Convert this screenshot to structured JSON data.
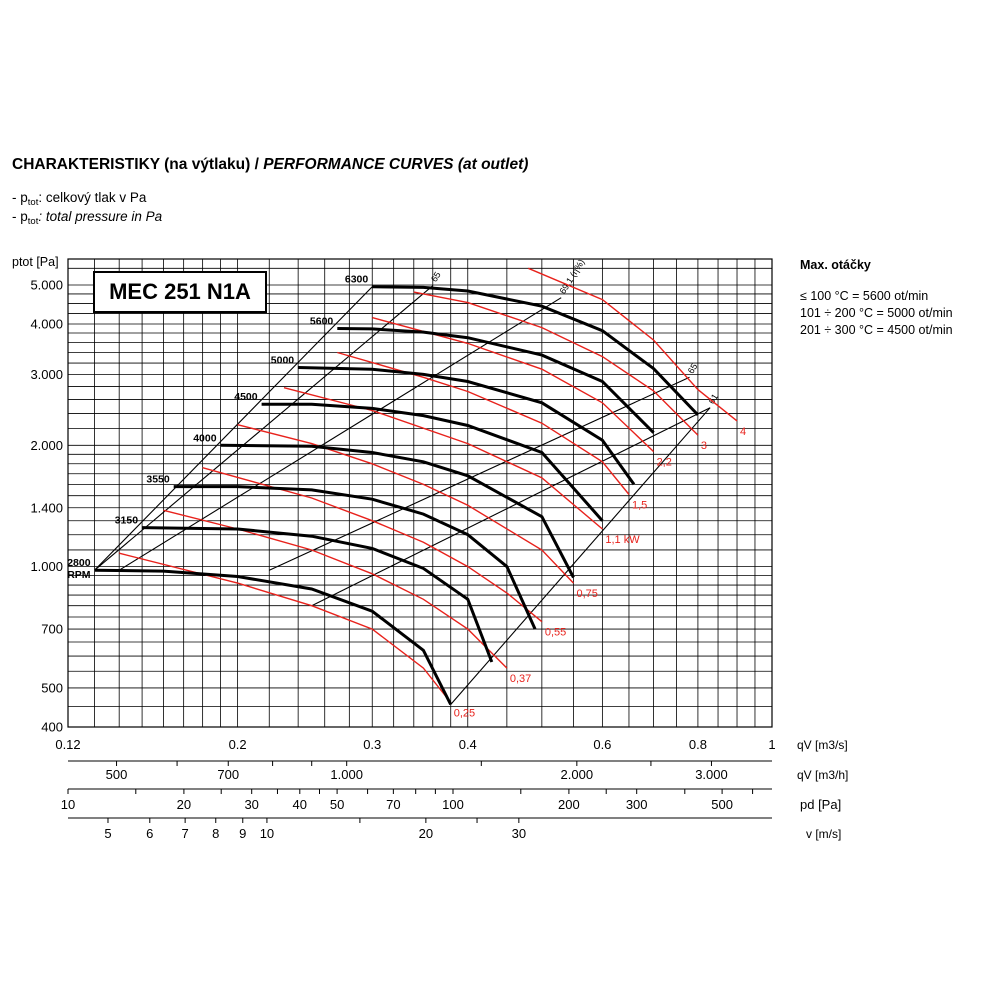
{
  "title": {
    "cz": "CHARAKTERISTIKY (na výtlaku) / ",
    "en": "PERFORMANCE CURVES (at outlet)"
  },
  "legend": [
    {
      "prefix": "- p",
      "sub": "tot",
      "text_cz": ": celkový tlak v Pa"
    },
    {
      "prefix": "- p",
      "sub": "tot",
      "text_en": ": total pressure in Pa"
    }
  ],
  "model": "MEC 251 N1A",
  "max_speed": {
    "heading": "Max. otáčky",
    "lines": [
      "≤ 100 °C = 5600 ot/min",
      "101 ÷ 200 °C = 5000 ot/min",
      "201 ÷ 300 °C = 4500 ot/min"
    ]
  },
  "colors": {
    "speed_curve": "#000000",
    "power_curve": "#e8221c",
    "grid": "#000000"
  },
  "chart_data": {
    "type": "line",
    "x_scale": "log",
    "y_scale": "log",
    "xlim": [
      0.12,
      1
    ],
    "ylim": [
      400,
      5800
    ],
    "ylabel": "ptot [Pa]",
    "y_ticks": [
      {
        "v": 400,
        "label": "400"
      },
      {
        "v": 500,
        "label": "500"
      },
      {
        "v": 700,
        "label": "700"
      },
      {
        "v": 1000,
        "label": "1.000"
      },
      {
        "v": 1400,
        "label": "1.400"
      },
      {
        "v": 2000,
        "label": "2.000"
      },
      {
        "v": 3000,
        "label": "3.000"
      },
      {
        "v": 4000,
        "label": "4.000"
      },
      {
        "v": 5000,
        "label": "5.000"
      }
    ],
    "x_axes": [
      {
        "unit": "qV [m3/s]",
        "ticks": [
          {
            "v": 0.12,
            "label": "0.12"
          },
          {
            "v": 0.2,
            "label": "0.2"
          },
          {
            "v": 0.3,
            "label": "0.3"
          },
          {
            "v": 0.4,
            "label": "0.4"
          },
          {
            "v": 0.6,
            "label": "0.6"
          },
          {
            "v": 0.8,
            "label": "0.8"
          },
          {
            "v": 1,
            "label": "1"
          }
        ]
      },
      {
        "unit": "qV [m3/h]",
        "ticks": [
          {
            "v": 500,
            "label": "500"
          },
          {
            "v": 700,
            "label": "700"
          },
          {
            "v": 1000,
            "label": "1.000"
          },
          {
            "v": 2000,
            "label": "2.000"
          },
          {
            "v": 3000,
            "label": "3.000"
          }
        ]
      },
      {
        "unit": "pd [Pa]",
        "ticks": [
          {
            "v": 10,
            "label": "10"
          },
          {
            "v": 20,
            "label": "20"
          },
          {
            "v": 30,
            "label": "30"
          },
          {
            "v": 40,
            "label": "40"
          },
          {
            "v": 50,
            "label": "50"
          },
          {
            "v": 70,
            "label": "70"
          },
          {
            "v": 100,
            "label": "100"
          },
          {
            "v": 200,
            "label": "200"
          },
          {
            "v": 300,
            "label": "300"
          },
          {
            "v": 500,
            "label": "500"
          }
        ]
      },
      {
        "unit": "v [m/s]",
        "ticks": [
          {
            "v": 5,
            "label": "5"
          },
          {
            "v": 6,
            "label": "6"
          },
          {
            "v": 7,
            "label": "7"
          },
          {
            "v": 8,
            "label": "8"
          },
          {
            "v": 9,
            "label": "9"
          },
          {
            "v": 10,
            "label": "10"
          },
          {
            "v": 20,
            "label": "20"
          },
          {
            "v": 30,
            "label": "30"
          }
        ]
      }
    ],
    "speed_curves": [
      {
        "name": "2800",
        "unit": "RPM",
        "points": [
          [
            0.13,
            980
          ],
          [
            0.16,
            975
          ],
          [
            0.2,
            945
          ],
          [
            0.25,
            880
          ],
          [
            0.3,
            775
          ],
          [
            0.35,
            620
          ],
          [
            0.38,
            455
          ]
        ]
      },
      {
        "name": "3150",
        "points": [
          [
            0.15,
            1250
          ],
          [
            0.2,
            1240
          ],
          [
            0.25,
            1190
          ],
          [
            0.3,
            1110
          ],
          [
            0.35,
            990
          ],
          [
            0.4,
            830
          ],
          [
            0.43,
            580
          ]
        ]
      },
      {
        "name": "3550",
        "points": [
          [
            0.165,
            1580
          ],
          [
            0.2,
            1580
          ],
          [
            0.25,
            1550
          ],
          [
            0.3,
            1470
          ],
          [
            0.35,
            1350
          ],
          [
            0.4,
            1200
          ],
          [
            0.45,
            1000
          ],
          [
            0.49,
            700
          ]
        ]
      },
      {
        "name": "4000",
        "points": [
          [
            0.19,
            2000
          ],
          [
            0.25,
            1990
          ],
          [
            0.3,
            1920
          ],
          [
            0.35,
            1820
          ],
          [
            0.4,
            1680
          ],
          [
            0.5,
            1330
          ],
          [
            0.55,
            940
          ]
        ]
      },
      {
        "name": "4500",
        "points": [
          [
            0.215,
            2530
          ],
          [
            0.25,
            2530
          ],
          [
            0.3,
            2470
          ],
          [
            0.35,
            2370
          ],
          [
            0.4,
            2240
          ],
          [
            0.5,
            1920
          ],
          [
            0.6,
            1300
          ]
        ]
      },
      {
        "name": "5000",
        "points": [
          [
            0.24,
            3120
          ],
          [
            0.3,
            3090
          ],
          [
            0.35,
            3000
          ],
          [
            0.4,
            2880
          ],
          [
            0.5,
            2550
          ],
          [
            0.6,
            2060
          ],
          [
            0.66,
            1600
          ]
        ]
      },
      {
        "name": "5600",
        "points": [
          [
            0.27,
            3900
          ],
          [
            0.3,
            3890
          ],
          [
            0.35,
            3820
          ],
          [
            0.4,
            3700
          ],
          [
            0.5,
            3350
          ],
          [
            0.6,
            2880
          ],
          [
            0.7,
            2150
          ]
        ]
      },
      {
        "name": "6300",
        "points": [
          [
            0.3,
            4950
          ],
          [
            0.35,
            4930
          ],
          [
            0.4,
            4830
          ],
          [
            0.5,
            4430
          ],
          [
            0.6,
            3850
          ],
          [
            0.7,
            3100
          ],
          [
            0.8,
            2380
          ]
        ]
      }
    ],
    "power_curves": [
      {
        "name": "0,25",
        "points": [
          [
            0.14,
            1080
          ],
          [
            0.2,
            910
          ],
          [
            0.25,
            800
          ],
          [
            0.3,
            700
          ],
          [
            0.35,
            560
          ],
          [
            0.38,
            460
          ]
        ]
      },
      {
        "name": "0,37",
        "points": [
          [
            0.16,
            1380
          ],
          [
            0.2,
            1240
          ],
          [
            0.25,
            1100
          ],
          [
            0.3,
            960
          ],
          [
            0.35,
            830
          ],
          [
            0.4,
            700
          ],
          [
            0.45,
            560
          ]
        ]
      },
      {
        "name": "0,55",
        "points": [
          [
            0.18,
            1760
          ],
          [
            0.25,
            1480
          ],
          [
            0.3,
            1300
          ],
          [
            0.35,
            1150
          ],
          [
            0.4,
            1000
          ],
          [
            0.45,
            860
          ],
          [
            0.5,
            730
          ]
        ]
      },
      {
        "name": "0,75",
        "points": [
          [
            0.2,
            2250
          ],
          [
            0.25,
            2020
          ],
          [
            0.3,
            1800
          ],
          [
            0.35,
            1600
          ],
          [
            0.4,
            1420
          ],
          [
            0.5,
            1100
          ],
          [
            0.55,
            910
          ]
        ]
      },
      {
        "name": "1,1 kW",
        "points": [
          [
            0.23,
            2780
          ],
          [
            0.3,
            2440
          ],
          [
            0.4,
            2020
          ],
          [
            0.5,
            1660
          ],
          [
            0.6,
            1240
          ]
        ]
      },
      {
        "name": "1,5",
        "points": [
          [
            0.27,
            3400
          ],
          [
            0.35,
            2950
          ],
          [
            0.4,
            2720
          ],
          [
            0.5,
            2270
          ],
          [
            0.6,
            1820
          ],
          [
            0.65,
            1510
          ]
        ]
      },
      {
        "name": "2,2",
        "points": [
          [
            0.3,
            4150
          ],
          [
            0.4,
            3580
          ],
          [
            0.5,
            3090
          ],
          [
            0.6,
            2550
          ],
          [
            0.7,
            1930
          ]
        ]
      },
      {
        "name": "3",
        "points": [
          [
            0.34,
            4800
          ],
          [
            0.4,
            4520
          ],
          [
            0.5,
            3920
          ],
          [
            0.6,
            3320
          ],
          [
            0.7,
            2730
          ],
          [
            0.8,
            2120
          ]
        ]
      },
      {
        "name": "4",
        "points": [
          [
            0.48,
            5500
          ],
          [
            0.6,
            4600
          ],
          [
            0.7,
            3650
          ],
          [
            0.8,
            2750
          ],
          [
            0.9,
            2300
          ]
        ]
      }
    ],
    "efficiency_lines": [
      {
        "name": "65",
        "points": [
          [
            0.13,
            980
          ],
          [
            0.36,
            4980
          ]
        ]
      },
      {
        "name": "69,1 (η%)",
        "points": [
          [
            0.14,
            980
          ],
          [
            0.53,
            4650
          ]
        ]
      },
      {
        "name": "65",
        "points": [
          [
            0.22,
            980
          ],
          [
            0.78,
            2950
          ]
        ]
      },
      {
        "name": "61",
        "points": [
          [
            0.25,
            800
          ],
          [
            0.83,
            2480
          ]
        ]
      },
      {
        "name": "",
        "points": [
          [
            0.38,
            455
          ],
          [
            0.83,
            2480
          ]
        ]
      }
    ]
  }
}
